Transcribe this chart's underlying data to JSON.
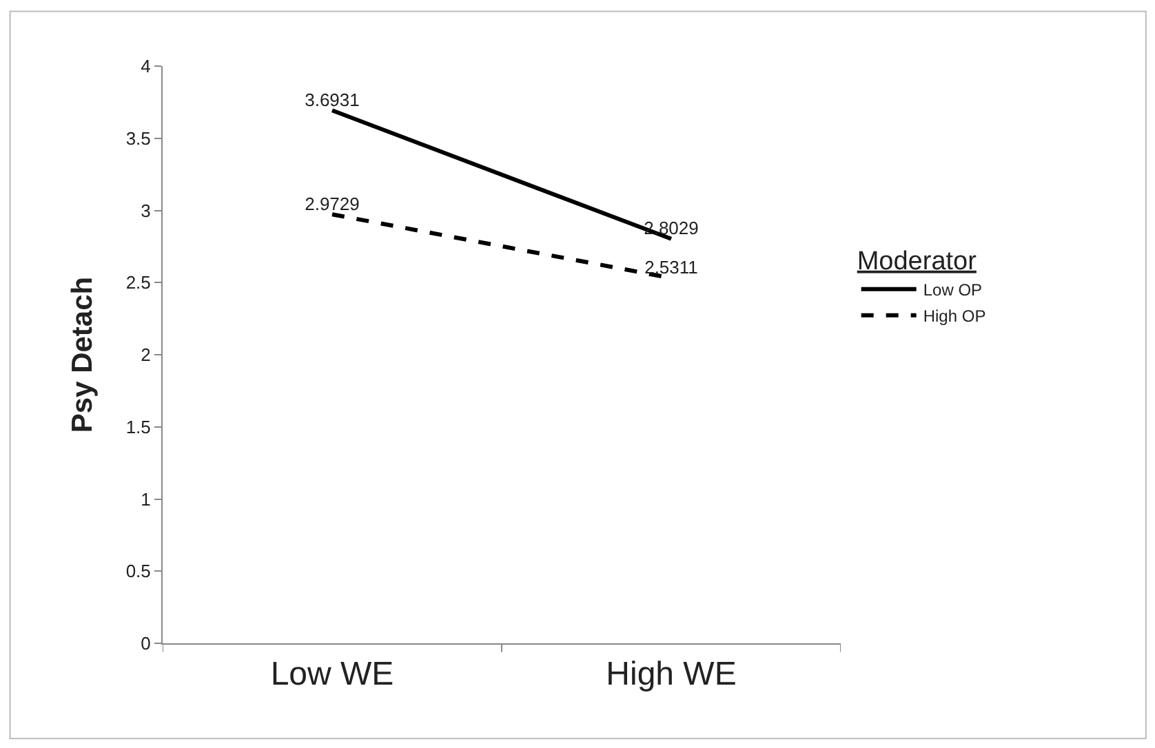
{
  "chart_data": {
    "type": "line",
    "ylabel": "Psy Detach",
    "legend_title": "Moderator",
    "legend": "right",
    "categories": [
      "Low WE",
      "High WE"
    ],
    "series": [
      {
        "name": "Low OP",
        "color": "#000000",
        "line_style": "solid",
        "values": [
          3.6931,
          2.8029
        ]
      },
      {
        "name": "High OP",
        "color": "#000000",
        "line_style": "dashed",
        "values": [
          2.9729,
          2.5311
        ]
      }
    ],
    "ylim": [
      0,
      4
    ],
    "yticks": [
      0,
      0.5,
      1,
      1.5,
      2,
      2.5,
      3,
      3.5,
      4
    ],
    "marker": "none",
    "data_labels": true
  }
}
